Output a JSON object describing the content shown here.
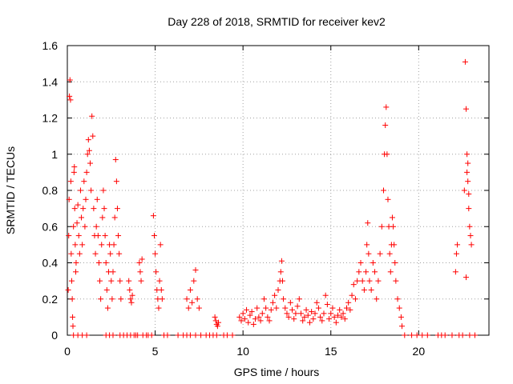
{
  "chart_data": {
    "type": "scatter",
    "title": "Day 228 of 2018, SRMTID for receiver kev2",
    "xlabel": "GPS time / hours",
    "ylabel": "SRMTID / TECUs",
    "xlim": [
      0,
      24
    ],
    "ylim": [
      0,
      1.6
    ],
    "xticks": [
      0,
      5,
      10,
      15,
      20
    ],
    "yticks": [
      0,
      0.2,
      0.4,
      0.6,
      0.8,
      1,
      1.2,
      1.4,
      1.6
    ],
    "xtick_labels": [
      "0",
      "5",
      "10",
      "15",
      "20"
    ],
    "ytick_labels": [
      "0",
      "0.2",
      "0.4",
      "0.6",
      "0.8",
      "1",
      "1.2",
      "1.4",
      "1.6"
    ],
    "grid": true,
    "marker": "+",
    "color": "#ff0000",
    "series": [
      {
        "name": "SRMTID",
        "points": [
          [
            0.05,
            0.25
          ],
          [
            0.08,
            0.55
          ],
          [
            0.1,
            0.75
          ],
          [
            0.12,
            1.32
          ],
          [
            0.15,
            1.41
          ],
          [
            0.18,
            1.3
          ],
          [
            0.2,
            0.85
          ],
          [
            0.22,
            0.45
          ],
          [
            0.25,
            0.3
          ],
          [
            0.28,
            0.2
          ],
          [
            0.3,
            0.1
          ],
          [
            0.32,
            0.05
          ],
          [
            0.35,
            0.6
          ],
          [
            0.38,
            0.9
          ],
          [
            0.4,
            0.93
          ],
          [
            0.42,
            0.7
          ],
          [
            0.45,
            0.5
          ],
          [
            0.48,
            0.35
          ],
          [
            0.5,
            0.4
          ],
          [
            0.55,
            0.62
          ],
          [
            0.6,
            0.72
          ],
          [
            0.65,
            0.55
          ],
          [
            0.7,
            0.45
          ],
          [
            0.75,
            0.8
          ],
          [
            0.8,
            0.65
          ],
          [
            0.85,
            0.5
          ],
          [
            0.9,
            0.7
          ],
          [
            0.95,
            0.85
          ],
          [
            1.0,
            0.6
          ],
          [
            1.05,
            0.75
          ],
          [
            1.1,
            0.9
          ],
          [
            1.15,
            1.0
          ],
          [
            1.2,
            1.08
          ],
          [
            1.25,
            1.02
          ],
          [
            1.3,
            0.95
          ],
          [
            1.35,
            0.8
          ],
          [
            1.4,
            1.21
          ],
          [
            1.45,
            1.1
          ],
          [
            1.5,
            0.7
          ],
          [
            1.55,
            0.55
          ],
          [
            1.6,
            0.45
          ],
          [
            1.65,
            0.6
          ],
          [
            1.7,
            0.75
          ],
          [
            1.75,
            0.55
          ],
          [
            1.8,
            0.4
          ],
          [
            1.85,
            0.3
          ],
          [
            1.9,
            0.2
          ],
          [
            1.95,
            0.5
          ],
          [
            2.0,
            0.65
          ],
          [
            2.05,
            0.8
          ],
          [
            2.1,
            0.7
          ],
          [
            2.15,
            0.55
          ],
          [
            2.2,
            0.4
          ],
          [
            2.25,
            0.25
          ],
          [
            2.3,
            0.15
          ],
          [
            2.35,
            0.35
          ],
          [
            2.4,
            0.5
          ],
          [
            2.45,
            0.45
          ],
          [
            2.5,
            0.3
          ],
          [
            2.55,
            0.2
          ],
          [
            2.6,
            0.35
          ],
          [
            2.65,
            0.5
          ],
          [
            2.7,
            0.65
          ],
          [
            2.75,
            0.97
          ],
          [
            2.8,
            0.85
          ],
          [
            2.85,
            0.7
          ],
          [
            2.9,
            0.55
          ],
          [
            2.95,
            0.45
          ],
          [
            3.0,
            0.3
          ],
          [
            3.05,
            0.2
          ],
          [
            3.5,
            0.3
          ],
          [
            3.55,
            0.25
          ],
          [
            3.6,
            0.2
          ],
          [
            3.65,
            0.18
          ],
          [
            3.7,
            0.22
          ],
          [
            4.1,
            0.4
          ],
          [
            4.15,
            0.35
          ],
          [
            4.2,
            0.3
          ],
          [
            4.25,
            0.42
          ],
          [
            4.9,
            0.66
          ],
          [
            4.95,
            0.55
          ],
          [
            5.0,
            0.45
          ],
          [
            5.05,
            0.35
          ],
          [
            5.1,
            0.25
          ],
          [
            5.15,
            0.2
          ],
          [
            5.2,
            0.15
          ],
          [
            5.25,
            0.3
          ],
          [
            5.3,
            0.5
          ],
          [
            5.35,
            0.25
          ],
          [
            5.4,
            0.2
          ],
          [
            6.8,
            0.2
          ],
          [
            6.9,
            0.15
          ],
          [
            7.0,
            0.25
          ],
          [
            7.1,
            0.18
          ],
          [
            7.2,
            0.3
          ],
          [
            7.3,
            0.36
          ],
          [
            7.4,
            0.2
          ],
          [
            7.5,
            0.15
          ],
          [
            8.4,
            0.1
          ],
          [
            8.45,
            0.08
          ],
          [
            8.5,
            0.06
          ],
          [
            8.55,
            0.05
          ],
          [
            8.6,
            0.07
          ],
          [
            9.8,
            0.1
          ],
          [
            9.9,
            0.08
          ],
          [
            10.0,
            0.12
          ],
          [
            10.1,
            0.09
          ],
          [
            10.2,
            0.14
          ],
          [
            10.3,
            0.07
          ],
          [
            10.4,
            0.11
          ],
          [
            10.5,
            0.13
          ],
          [
            10.6,
            0.06
          ],
          [
            10.7,
            0.09
          ],
          [
            10.8,
            0.15
          ],
          [
            10.9,
            0.1
          ],
          [
            11.0,
            0.08
          ],
          [
            11.1,
            0.12
          ],
          [
            11.2,
            0.2
          ],
          [
            11.3,
            0.15
          ],
          [
            11.4,
            0.1
          ],
          [
            11.5,
            0.08
          ],
          [
            11.6,
            0.14
          ],
          [
            11.7,
            0.18
          ],
          [
            11.8,
            0.22
          ],
          [
            11.9,
            0.15
          ],
          [
            12.0,
            0.25
          ],
          [
            12.1,
            0.3
          ],
          [
            12.15,
            0.35
          ],
          [
            12.2,
            0.41
          ],
          [
            12.25,
            0.3
          ],
          [
            12.3,
            0.2
          ],
          [
            12.4,
            0.15
          ],
          [
            12.5,
            0.12
          ],
          [
            12.6,
            0.1
          ],
          [
            12.7,
            0.18
          ],
          [
            12.8,
            0.14
          ],
          [
            12.9,
            0.09
          ],
          [
            13.0,
            0.12
          ],
          [
            13.1,
            0.16
          ],
          [
            13.2,
            0.2
          ],
          [
            13.3,
            0.12
          ],
          [
            13.4,
            0.08
          ],
          [
            13.5,
            0.1
          ],
          [
            13.6,
            0.14
          ],
          [
            13.7,
            0.11
          ],
          [
            13.8,
            0.07
          ],
          [
            13.9,
            0.13
          ],
          [
            14.0,
            0.09
          ],
          [
            14.1,
            0.12
          ],
          [
            14.2,
            0.18
          ],
          [
            14.3,
            0.15
          ],
          [
            14.4,
            0.1
          ],
          [
            14.5,
            0.08
          ],
          [
            14.6,
            0.12
          ],
          [
            14.7,
            0.22
          ],
          [
            14.8,
            0.17
          ],
          [
            14.9,
            0.09
          ],
          [
            15.0,
            0.12
          ],
          [
            15.1,
            0.15
          ],
          [
            15.2,
            0.1
          ],
          [
            15.3,
            0.07
          ],
          [
            15.4,
            0.11
          ],
          [
            15.5,
            0.14
          ],
          [
            15.6,
            0.1
          ],
          [
            15.7,
            0.12
          ],
          [
            15.8,
            0.09
          ],
          [
            15.9,
            0.15
          ],
          [
            16.0,
            0.18
          ],
          [
            16.1,
            0.14
          ],
          [
            16.2,
            0.22
          ],
          [
            16.3,
            0.28
          ],
          [
            16.4,
            0.2
          ],
          [
            16.5,
            0.3
          ],
          [
            16.6,
            0.35
          ],
          [
            16.7,
            0.4
          ],
          [
            16.8,
            0.3
          ],
          [
            16.9,
            0.25
          ],
          [
            17.0,
            0.35
          ],
          [
            17.05,
            0.5
          ],
          [
            17.1,
            0.62
          ],
          [
            17.15,
            0.45
          ],
          [
            17.2,
            0.3
          ],
          [
            17.3,
            0.25
          ],
          [
            17.4,
            0.4
          ],
          [
            17.5,
            0.35
          ],
          [
            17.6,
            0.2
          ],
          [
            17.7,
            0.3
          ],
          [
            17.8,
            0.45
          ],
          [
            17.9,
            0.6
          ],
          [
            18.0,
            0.8
          ],
          [
            18.05,
            1.0
          ],
          [
            18.1,
            1.16
          ],
          [
            18.15,
            1.26
          ],
          [
            18.2,
            1.0
          ],
          [
            18.25,
            0.75
          ],
          [
            18.3,
            0.6
          ],
          [
            18.35,
            0.45
          ],
          [
            18.4,
            0.35
          ],
          [
            18.45,
            0.5
          ],
          [
            18.5,
            0.65
          ],
          [
            18.55,
            0.6
          ],
          [
            18.6,
            0.5
          ],
          [
            18.65,
            0.4
          ],
          [
            18.7,
            0.3
          ],
          [
            18.8,
            0.2
          ],
          [
            18.9,
            0.15
          ],
          [
            19.0,
            0.1
          ],
          [
            19.05,
            0.05
          ],
          [
            22.1,
            0.35
          ],
          [
            22.15,
            0.45
          ],
          [
            22.2,
            0.5
          ],
          [
            22.6,
            0.8
          ],
          [
            22.65,
            1.51
          ],
          [
            22.7,
            1.25
          ],
          [
            22.75,
            1.0
          ],
          [
            22.8,
            0.85
          ],
          [
            22.85,
            0.7
          ],
          [
            22.9,
            0.6
          ],
          [
            22.95,
            0.55
          ],
          [
            23.0,
            0.5
          ],
          [
            22.7,
            0.32
          ],
          [
            22.75,
            0.9
          ],
          [
            22.8,
            0.95
          ],
          [
            22.85,
            0.78
          ]
        ]
      }
    ],
    "zero_markers_x": [
      0.35,
      0.6,
      0.85,
      1.1,
      2.2,
      2.4,
      2.6,
      3.0,
      3.2,
      3.4,
      3.6,
      3.8,
      3.9,
      4.0,
      4.3,
      4.5,
      4.6,
      4.8,
      5.5,
      5.7,
      6.3,
      6.6,
      6.8,
      7.0,
      7.3,
      7.6,
      7.9,
      8.1,
      8.3,
      8.5,
      8.9,
      9.1,
      9.4,
      19.2,
      19.6,
      19.9,
      20.2,
      20.5,
      21.1,
      21.3,
      21.5,
      21.9,
      22.3,
      22.5,
      22.9,
      23.2
    ]
  }
}
